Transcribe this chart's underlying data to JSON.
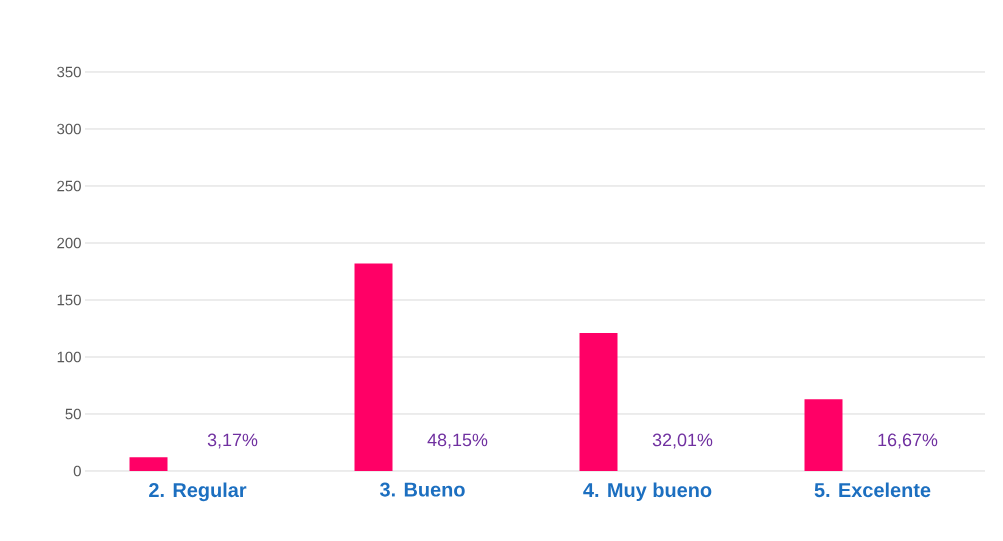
{
  "chart_data": {
    "type": "bar",
    "categories": [
      "2. Regular",
      "3. Bueno",
      "4. Muy bueno",
      "5. Excelente"
    ],
    "values": [
      12,
      182,
      121,
      63
    ],
    "annotations": [
      "3,17%",
      "48,15%",
      "32,01%",
      "16,67%"
    ],
    "color": "#ff0066",
    "ylim": [
      0,
      350
    ],
    "yticks": [
      0,
      50,
      100,
      150,
      200,
      250,
      300,
      350
    ],
    "grid": "y"
  }
}
